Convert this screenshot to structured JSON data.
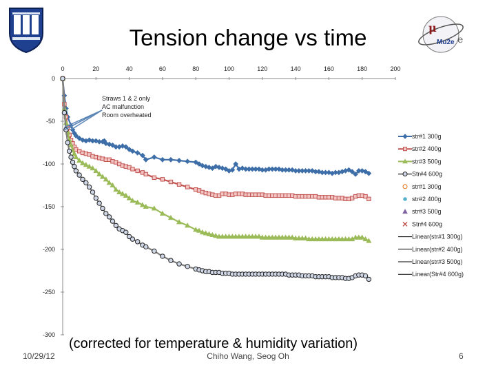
{
  "slide": {
    "title": "Tension change vs time",
    "date": "10/29/12",
    "authors": "Chiho Wang, Seog Oh",
    "page": "6",
    "note": "(corrected for temperature & humidity variation)",
    "logo_left": "duke-shield-logo",
    "logo_right": "mu2e-logo",
    "logo_right_text": "Mu2e"
  },
  "chart_data": {
    "type": "line",
    "title": "",
    "xlabel": "",
    "ylabel": "",
    "xlim": [
      0,
      200
    ],
    "ylim": [
      -300,
      0
    ],
    "xticks": [
      0,
      20,
      40,
      60,
      80,
      100,
      120,
      140,
      160,
      180,
      200
    ],
    "yticks": [
      0,
      -50,
      -100,
      -150,
      -200,
      -250,
      -300
    ],
    "legend_position": "right",
    "annotation": {
      "lines": [
        "Straws 1 & 2 only",
        "AC malfunction",
        "Room overheated"
      ],
      "targets": [
        [
          1,
          -60
        ],
        [
          1,
          -57
        ],
        [
          2,
          -59
        ],
        [
          5,
          -60
        ]
      ]
    },
    "series": [
      {
        "name": "str#1 300g",
        "color": "#3e6ea8",
        "marker": "diamond",
        "filled": true,
        "x": [
          0,
          1,
          2,
          3,
          5,
          6,
          7,
          8,
          10,
          12,
          14,
          16,
          18,
          20,
          22,
          24,
          25,
          26,
          28,
          30,
          32,
          34,
          36,
          38,
          40,
          42,
          45,
          48,
          50,
          55,
          60,
          65,
          70,
          75,
          80,
          82,
          84,
          86,
          88,
          90,
          92,
          94,
          96,
          98,
          100,
          102,
          104,
          106,
          108,
          110,
          112,
          114,
          116,
          118,
          120,
          122,
          124,
          126,
          128,
          130,
          132,
          134,
          136,
          138,
          140,
          142,
          144,
          146,
          148,
          150,
          152,
          154,
          156,
          158,
          160,
          162,
          164,
          166,
          168,
          170,
          172,
          174,
          176,
          178,
          180,
          182,
          184
        ],
        "y": [
          0,
          -20,
          -35,
          -45,
          -55,
          -60,
          -64,
          -67,
          -70,
          -72,
          -73,
          -72,
          -73,
          -73,
          -74,
          -74,
          -73,
          -76,
          -77,
          -78,
          -80,
          -80,
          -79,
          -80,
          -83,
          -85,
          -87,
          -90,
          -95,
          -92,
          -95,
          -95,
          -96,
          -97,
          -98,
          -100,
          -102,
          -103,
          -104,
          -105,
          -103,
          -104,
          -105,
          -106,
          -108,
          -107,
          -100,
          -106,
          -105,
          -106,
          -106,
          -106,
          -106,
          -106,
          -107,
          -107,
          -106,
          -106,
          -106,
          -106,
          -107,
          -107,
          -107,
          -107,
          -108,
          -108,
          -108,
          -108,
          -108,
          -108,
          -109,
          -109,
          -110,
          -110,
          -110,
          -111,
          -110,
          -110,
          -109,
          -108,
          -107,
          -109,
          -112,
          -108,
          -108,
          -109,
          -111
        ]
      },
      {
        "name": "str#2 400g",
        "color": "#c0504d",
        "marker": "square",
        "filled": true,
        "x": [
          0,
          1,
          2,
          3,
          4,
          5,
          6,
          7,
          8,
          10,
          12,
          14,
          16,
          18,
          20,
          22,
          24,
          26,
          28,
          30,
          32,
          34,
          36,
          38,
          40,
          42,
          45,
          48,
          50,
          55,
          60,
          65,
          70,
          75,
          80,
          82,
          84,
          86,
          88,
          90,
          92,
          94,
          96,
          98,
          100,
          102,
          104,
          106,
          108,
          110,
          112,
          114,
          116,
          118,
          120,
          122,
          124,
          126,
          128,
          130,
          132,
          134,
          136,
          138,
          140,
          142,
          144,
          146,
          148,
          150,
          152,
          154,
          156,
          158,
          160,
          162,
          164,
          166,
          168,
          170,
          172,
          174,
          176,
          178,
          180,
          182,
          184
        ],
        "y": [
          0,
          -30,
          -45,
          -58,
          -66,
          -72,
          -76,
          -80,
          -83,
          -85,
          -87,
          -88,
          -89,
          -91,
          -92,
          -93,
          -94,
          -95,
          -95,
          -97,
          -98,
          -100,
          -102,
          -103,
          -104,
          -106,
          -108,
          -110,
          -112,
          -116,
          -118,
          -121,
          -124,
          -127,
          -130,
          -131,
          -133,
          -134,
          -135,
          -136,
          -137,
          -137,
          -135,
          -135,
          -136,
          -136,
          -135,
          -135,
          -135,
          -136,
          -136,
          -136,
          -136,
          -136,
          -136,
          -137,
          -137,
          -137,
          -137,
          -137,
          -137,
          -137,
          -137,
          -137,
          -138,
          -138,
          -138,
          -138,
          -138,
          -138,
          -138,
          -139,
          -139,
          -139,
          -139,
          -139,
          -140,
          -140,
          -140,
          -141,
          -141,
          -140,
          -138,
          -137,
          -137,
          -138,
          -141
        ]
      },
      {
        "name": "str#3 500g",
        "color": "#9bbb59",
        "marker": "triangle",
        "filled": true,
        "x": [
          0,
          1,
          2,
          3,
          4,
          5,
          6,
          7,
          8,
          10,
          12,
          14,
          16,
          18,
          20,
          22,
          24,
          26,
          28,
          30,
          32,
          34,
          36,
          38,
          40,
          42,
          45,
          48,
          50,
          55,
          60,
          65,
          70,
          75,
          80,
          82,
          84,
          86,
          88,
          90,
          92,
          94,
          96,
          98,
          100,
          102,
          104,
          106,
          108,
          110,
          112,
          114,
          116,
          118,
          120,
          122,
          124,
          126,
          128,
          130,
          132,
          134,
          136,
          138,
          140,
          142,
          144,
          146,
          148,
          150,
          152,
          154,
          156,
          158,
          160,
          162,
          164,
          166,
          168,
          170,
          172,
          174,
          176,
          178,
          180,
          182,
          184
        ],
        "y": [
          0,
          -35,
          -52,
          -63,
          -72,
          -78,
          -84,
          -88,
          -92,
          -96,
          -99,
          -101,
          -103,
          -105,
          -108,
          -112,
          -115,
          -118,
          -122,
          -125,
          -130,
          -133,
          -135,
          -137,
          -140,
          -143,
          -145,
          -148,
          -150,
          -152,
          -158,
          -163,
          -168,
          -172,
          -177,
          -178,
          -180,
          -181,
          -182,
          -183,
          -184,
          -185,
          -185,
          -185,
          -185,
          -185,
          -185,
          -185,
          -185,
          -185,
          -185,
          -185,
          -185,
          -185,
          -186,
          -186,
          -186,
          -186,
          -186,
          -186,
          -186,
          -186,
          -186,
          -186,
          -187,
          -187,
          -187,
          -187,
          -188,
          -188,
          -188,
          -188,
          -188,
          -188,
          -188,
          -188,
          -188,
          -188,
          -188,
          -188,
          -188,
          -188,
          -186,
          -186,
          -186,
          -188,
          -190
        ]
      },
      {
        "name": "Str#4 600g",
        "color": "#7f7f7f",
        "marker": "circle",
        "filled": true,
        "x": [
          0,
          1,
          2,
          3,
          4,
          5,
          6,
          7,
          8,
          10,
          12,
          14,
          16,
          18,
          20,
          22,
          24,
          26,
          28,
          30,
          32,
          34,
          36,
          38,
          40,
          42,
          45,
          48,
          50,
          55,
          60,
          65,
          70,
          75,
          80,
          82,
          84,
          86,
          88,
          90,
          92,
          94,
          96,
          98,
          100,
          102,
          104,
          106,
          108,
          110,
          112,
          114,
          116,
          118,
          120,
          122,
          124,
          126,
          128,
          130,
          132,
          134,
          136,
          138,
          140,
          142,
          144,
          146,
          148,
          150,
          152,
          154,
          156,
          158,
          160,
          162,
          164,
          166,
          168,
          170,
          172,
          174,
          176,
          178,
          180,
          182,
          184
        ],
        "y": [
          0,
          -40,
          -60,
          -75,
          -85,
          -92,
          -98,
          -103,
          -108,
          -113,
          -118,
          -122,
          -127,
          -133,
          -140,
          -146,
          -152,
          -158,
          -162,
          -167,
          -172,
          -176,
          -178,
          -180,
          -185,
          -188,
          -191,
          -195,
          -197,
          -202,
          -208,
          -213,
          -217,
          -220,
          -223,
          -224,
          -225,
          -226,
          -226,
          -227,
          -227,
          -227,
          -228,
          -228,
          -228,
          -229,
          -229,
          -229,
          -229,
          -229,
          -229,
          -229,
          -229,
          -229,
          -229,
          -229,
          -229,
          -229,
          -229,
          -229,
          -229,
          -229,
          -230,
          -230,
          -230,
          -230,
          -231,
          -231,
          -231,
          -231,
          -232,
          -232,
          -232,
          -232,
          -232,
          -233,
          -233,
          -233,
          -233,
          -234,
          -234,
          -233,
          -231,
          -230,
          -230,
          -231,
          -235
        ]
      },
      {
        "name": "str#1 300g",
        "color": "#e46c0a",
        "marker": "circle",
        "filled": false,
        "x": [],
        "y": []
      },
      {
        "name": "str#2 400g",
        "color": "#4bacc6",
        "marker": "star",
        "filled": true,
        "x": [],
        "y": []
      },
      {
        "name": "str#3 500g",
        "color": "#8064a2",
        "marker": "triangle",
        "filled": true,
        "x": [],
        "y": []
      },
      {
        "name": "Str#4 600g",
        "color": "#c0504d",
        "marker": "x",
        "filled": true,
        "x": [],
        "y": []
      },
      {
        "name": "Linear(str#1 300g)",
        "color": "#000000",
        "marker": "line",
        "filled": true,
        "x": [],
        "y": []
      },
      {
        "name": "Linear(str#2 400g)",
        "color": "#000000",
        "marker": "line",
        "filled": true,
        "x": [],
        "y": []
      },
      {
        "name": "Linear(str#3 500g)",
        "color": "#000000",
        "marker": "line",
        "filled": true,
        "x": [],
        "y": []
      },
      {
        "name": "Linear(Str#4 600g)",
        "color": "#000000",
        "marker": "line",
        "filled": true,
        "x": [],
        "y": []
      }
    ]
  }
}
